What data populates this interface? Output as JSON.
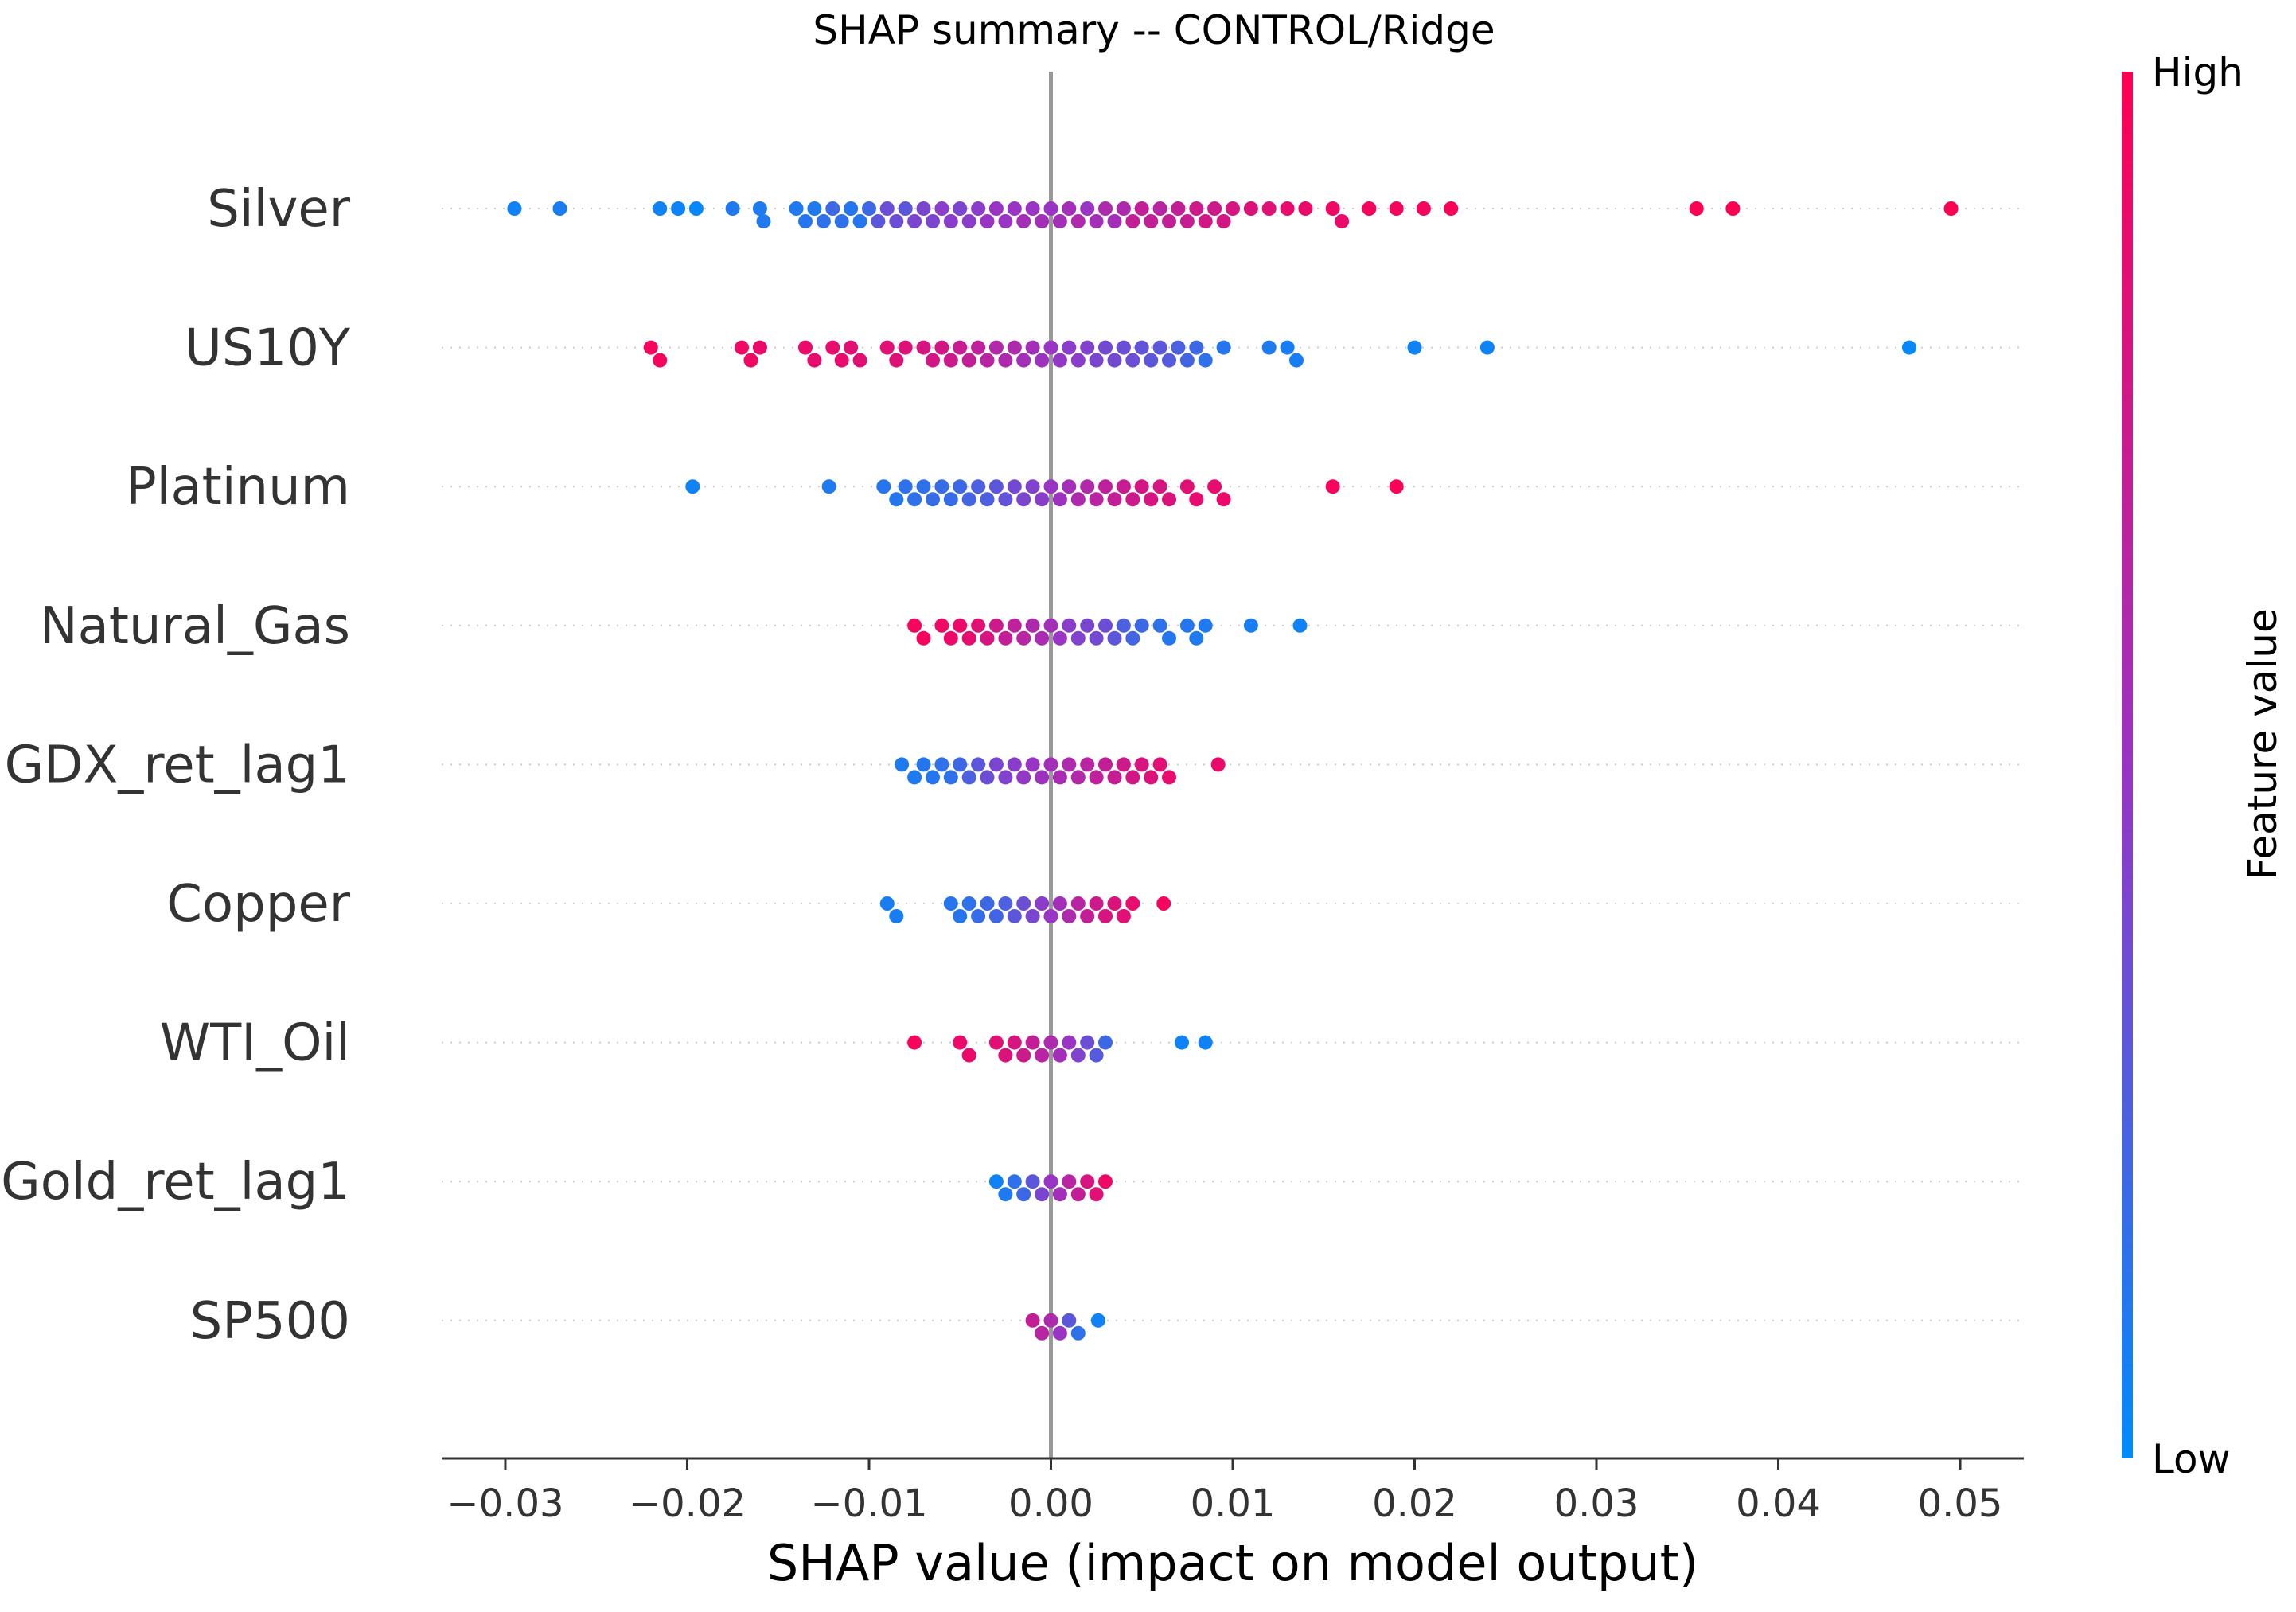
{
  "chart_data": {
    "type": "scatter",
    "subtype": "shap-beeswarm",
    "title": "SHAP summary -- CONTROL/Ridge",
    "xlabel": "SHAP value (impact on model output)",
    "xlim": [
      -0.0335,
      0.0535
    ],
    "xticks": [
      "−0.03",
      "−0.02",
      "−0.01",
      "0.00",
      "0.01",
      "0.02",
      "0.03",
      "0.04",
      "0.05"
    ],
    "xtick_values": [
      -0.03,
      -0.02,
      -0.01,
      0.0,
      0.01,
      0.02,
      0.03,
      0.04,
      0.05
    ],
    "grid": "dotted horizontal row guides",
    "zero_line": true,
    "colorbar": {
      "label": "Feature value",
      "high": "High",
      "low": "Low",
      "color_low": "#008bfb",
      "color_mid": "#9934c4",
      "color_high": "#ff0052"
    },
    "features": [
      {
        "name": "Silver",
        "points": [
          [
            -0.0295,
            0.05
          ],
          [
            -0.027,
            0.08
          ],
          [
            -0.0215,
            0.05
          ],
          [
            -0.0205,
            0.04
          ],
          [
            -0.0195,
            0.02
          ],
          [
            -0.0175,
            0.1
          ],
          [
            -0.016,
            0.1
          ],
          [
            -0.0158,
            0.1
          ],
          [
            -0.014,
            0.1
          ],
          [
            -0.0135,
            0.12
          ],
          [
            -0.013,
            0.1
          ],
          [
            -0.0125,
            0.15
          ],
          [
            -0.012,
            0.2
          ],
          [
            -0.0115,
            0.15
          ],
          [
            -0.011,
            0.12
          ],
          [
            -0.0105,
            0.12
          ],
          [
            -0.01,
            0.2
          ],
          [
            -0.0095,
            0.3
          ],
          [
            -0.009,
            0.35
          ],
          [
            -0.0085,
            0.35
          ],
          [
            -0.008,
            0.3
          ],
          [
            -0.0075,
            0.4
          ],
          [
            -0.007,
            0.4
          ],
          [
            -0.0065,
            0.4
          ],
          [
            -0.006,
            0.45
          ],
          [
            -0.0055,
            0.45
          ],
          [
            -0.005,
            0.4
          ],
          [
            -0.0045,
            0.45
          ],
          [
            -0.004,
            0.45
          ],
          [
            -0.0035,
            0.5
          ],
          [
            -0.003,
            0.5
          ],
          [
            -0.0025,
            0.5
          ],
          [
            -0.002,
            0.5
          ],
          [
            -0.0015,
            0.55
          ],
          [
            -0.001,
            0.5
          ],
          [
            -0.0005,
            0.55
          ],
          [
            0.0,
            0.5
          ],
          [
            0.0005,
            0.55
          ],
          [
            0.001,
            0.55
          ],
          [
            0.0015,
            0.6
          ],
          [
            0.002,
            0.5
          ],
          [
            0.0025,
            0.55
          ],
          [
            0.003,
            0.6
          ],
          [
            0.0035,
            0.55
          ],
          [
            0.004,
            0.6
          ],
          [
            0.0045,
            0.7
          ],
          [
            0.005,
            0.7
          ],
          [
            0.0055,
            0.7
          ],
          [
            0.006,
            0.65
          ],
          [
            0.0065,
            0.7
          ],
          [
            0.007,
            0.7
          ],
          [
            0.0075,
            0.72
          ],
          [
            0.008,
            0.75
          ],
          [
            0.0085,
            0.78
          ],
          [
            0.009,
            0.75
          ],
          [
            0.0095,
            0.78
          ],
          [
            0.01,
            0.8
          ],
          [
            0.011,
            0.82
          ],
          [
            0.012,
            0.85
          ],
          [
            0.013,
            0.88
          ],
          [
            0.014,
            0.9
          ],
          [
            0.0155,
            0.92
          ],
          [
            0.016,
            0.9
          ],
          [
            0.0175,
            0.95
          ],
          [
            0.019,
            0.95
          ],
          [
            0.0205,
            0.95
          ],
          [
            0.022,
            0.97
          ],
          [
            0.0355,
            1.0
          ],
          [
            0.0375,
            1.0
          ],
          [
            0.0495,
            1.0
          ]
        ]
      },
      {
        "name": "US10Y",
        "points": [
          [
            -0.022,
            0.95
          ],
          [
            -0.0215,
            0.95
          ],
          [
            -0.017,
            0.92
          ],
          [
            -0.0165,
            0.92
          ],
          [
            -0.016,
            0.9
          ],
          [
            -0.0135,
            0.9
          ],
          [
            -0.013,
            0.88
          ],
          [
            -0.012,
            0.88
          ],
          [
            -0.0115,
            0.88
          ],
          [
            -0.011,
            0.86
          ],
          [
            -0.0105,
            0.85
          ],
          [
            -0.009,
            0.85
          ],
          [
            -0.0085,
            0.84
          ],
          [
            -0.008,
            0.83
          ],
          [
            -0.007,
            0.8
          ],
          [
            -0.0065,
            0.78
          ],
          [
            -0.006,
            0.78
          ],
          [
            -0.0055,
            0.75
          ],
          [
            -0.005,
            0.72
          ],
          [
            -0.0045,
            0.7
          ],
          [
            -0.004,
            0.68
          ],
          [
            -0.0035,
            0.65
          ],
          [
            -0.003,
            0.62
          ],
          [
            -0.0025,
            0.6
          ],
          [
            -0.002,
            0.6
          ],
          [
            -0.0015,
            0.55
          ],
          [
            -0.001,
            0.55
          ],
          [
            -0.0005,
            0.52
          ],
          [
            0.0,
            0.5
          ],
          [
            0.0005,
            0.48
          ],
          [
            0.001,
            0.45
          ],
          [
            0.0015,
            0.45
          ],
          [
            0.002,
            0.42
          ],
          [
            0.0025,
            0.4
          ],
          [
            0.003,
            0.38
          ],
          [
            0.0035,
            0.38
          ],
          [
            0.004,
            0.35
          ],
          [
            0.0045,
            0.35
          ],
          [
            0.005,
            0.32
          ],
          [
            0.0055,
            0.3
          ],
          [
            0.006,
            0.3
          ],
          [
            0.0065,
            0.28
          ],
          [
            0.007,
            0.25
          ],
          [
            0.0075,
            0.22
          ],
          [
            0.008,
            0.2
          ],
          [
            0.0085,
            0.15
          ],
          [
            0.0095,
            0.12
          ],
          [
            0.012,
            0.1
          ],
          [
            0.013,
            0.08
          ],
          [
            0.0135,
            0.08
          ],
          [
            0.02,
            0.05
          ],
          [
            0.024,
            0.05
          ],
          [
            0.0472,
            0.02
          ]
        ]
      },
      {
        "name": "Platinum",
        "points": [
          [
            -0.0197,
            0.05
          ],
          [
            -0.0122,
            0.1
          ],
          [
            -0.0092,
            0.12
          ],
          [
            -0.0085,
            0.12
          ],
          [
            -0.008,
            0.15
          ],
          [
            -0.0075,
            0.15
          ],
          [
            -0.007,
            0.15
          ],
          [
            -0.0065,
            0.18
          ],
          [
            -0.006,
            0.18
          ],
          [
            -0.0055,
            0.18
          ],
          [
            -0.005,
            0.2
          ],
          [
            -0.0045,
            0.22
          ],
          [
            -0.004,
            0.25
          ],
          [
            -0.0035,
            0.25
          ],
          [
            -0.003,
            0.3
          ],
          [
            -0.0025,
            0.32
          ],
          [
            -0.002,
            0.38
          ],
          [
            -0.0015,
            0.4
          ],
          [
            -0.001,
            0.42
          ],
          [
            -0.0005,
            0.45
          ],
          [
            0.0,
            0.5
          ],
          [
            0.0005,
            0.52
          ],
          [
            0.001,
            0.55
          ],
          [
            0.0015,
            0.6
          ],
          [
            0.002,
            0.62
          ],
          [
            0.0025,
            0.65
          ],
          [
            0.003,
            0.68
          ],
          [
            0.0035,
            0.7
          ],
          [
            0.004,
            0.72
          ],
          [
            0.0045,
            0.75
          ],
          [
            0.005,
            0.78
          ],
          [
            0.0055,
            0.8
          ],
          [
            0.006,
            0.8
          ],
          [
            0.0065,
            0.82
          ],
          [
            0.0075,
            0.85
          ],
          [
            0.008,
            0.88
          ],
          [
            0.009,
            0.88
          ],
          [
            0.0095,
            0.9
          ],
          [
            0.0155,
            0.95
          ],
          [
            0.019,
            0.97
          ]
        ]
      },
      {
        "name": "Natural_Gas",
        "points": [
          [
            -0.0075,
            0.95
          ],
          [
            -0.007,
            0.95
          ],
          [
            -0.006,
            0.92
          ],
          [
            -0.0055,
            0.9
          ],
          [
            -0.005,
            0.9
          ],
          [
            -0.0045,
            0.88
          ],
          [
            -0.004,
            0.85
          ],
          [
            -0.0035,
            0.8
          ],
          [
            -0.003,
            0.75
          ],
          [
            -0.0025,
            0.7
          ],
          [
            -0.002,
            0.68
          ],
          [
            -0.0015,
            0.65
          ],
          [
            -0.001,
            0.6
          ],
          [
            -0.0005,
            0.58
          ],
          [
            0.0,
            0.55
          ],
          [
            0.0005,
            0.5
          ],
          [
            0.001,
            0.45
          ],
          [
            0.0015,
            0.42
          ],
          [
            0.002,
            0.4
          ],
          [
            0.0025,
            0.38
          ],
          [
            0.003,
            0.35
          ],
          [
            0.0035,
            0.3
          ],
          [
            0.004,
            0.25
          ],
          [
            0.0045,
            0.22
          ],
          [
            0.005,
            0.2
          ],
          [
            0.006,
            0.15
          ],
          [
            0.0065,
            0.12
          ],
          [
            0.0075,
            0.12
          ],
          [
            0.008,
            0.1
          ],
          [
            0.0085,
            0.1
          ],
          [
            0.011,
            0.08
          ],
          [
            0.0137,
            0.05
          ]
        ]
      },
      {
        "name": "GDX_ret_lag1",
        "points": [
          [
            -0.0082,
            0.1
          ],
          [
            -0.0075,
            0.1
          ],
          [
            -0.007,
            0.12
          ],
          [
            -0.0065,
            0.12
          ],
          [
            -0.006,
            0.15
          ],
          [
            -0.0055,
            0.15
          ],
          [
            -0.005,
            0.2
          ],
          [
            -0.0045,
            0.25
          ],
          [
            -0.004,
            0.3
          ],
          [
            -0.0035,
            0.35
          ],
          [
            -0.003,
            0.4
          ],
          [
            -0.0025,
            0.42
          ],
          [
            -0.002,
            0.45
          ],
          [
            -0.0015,
            0.48
          ],
          [
            -0.001,
            0.5
          ],
          [
            -0.0005,
            0.52
          ],
          [
            0.0,
            0.55
          ],
          [
            0.0005,
            0.58
          ],
          [
            0.001,
            0.6
          ],
          [
            0.0015,
            0.62
          ],
          [
            0.002,
            0.65
          ],
          [
            0.0025,
            0.68
          ],
          [
            0.003,
            0.7
          ],
          [
            0.0035,
            0.72
          ],
          [
            0.004,
            0.75
          ],
          [
            0.0045,
            0.78
          ],
          [
            0.005,
            0.8
          ],
          [
            0.0055,
            0.82
          ],
          [
            0.006,
            0.85
          ],
          [
            0.0065,
            0.88
          ],
          [
            0.0092,
            0.9
          ]
        ]
      },
      {
        "name": "Copper",
        "points": [
          [
            -0.009,
            0.08
          ],
          [
            -0.0085,
            0.08
          ],
          [
            -0.0055,
            0.12
          ],
          [
            -0.005,
            0.12
          ],
          [
            -0.0045,
            0.15
          ],
          [
            -0.004,
            0.18
          ],
          [
            -0.0035,
            0.2
          ],
          [
            -0.003,
            0.22
          ],
          [
            -0.0025,
            0.25
          ],
          [
            -0.002,
            0.3
          ],
          [
            -0.0015,
            0.35
          ],
          [
            -0.001,
            0.4
          ],
          [
            -0.0005,
            0.45
          ],
          [
            0.0,
            0.5
          ],
          [
            0.0005,
            0.55
          ],
          [
            0.001,
            0.6
          ],
          [
            0.0015,
            0.65
          ],
          [
            0.002,
            0.7
          ],
          [
            0.0025,
            0.75
          ],
          [
            0.003,
            0.8
          ],
          [
            0.0035,
            0.82
          ],
          [
            0.004,
            0.85
          ],
          [
            0.0045,
            0.88
          ],
          [
            0.0062,
            0.95
          ]
        ]
      },
      {
        "name": "WTI_Oil",
        "points": [
          [
            -0.0075,
            0.95
          ],
          [
            -0.005,
            0.9
          ],
          [
            -0.0045,
            0.9
          ],
          [
            -0.003,
            0.85
          ],
          [
            -0.0025,
            0.82
          ],
          [
            -0.002,
            0.8
          ],
          [
            -0.0015,
            0.75
          ],
          [
            -0.001,
            0.7
          ],
          [
            -0.0005,
            0.65
          ],
          [
            0.0,
            0.6
          ],
          [
            0.0005,
            0.55
          ],
          [
            0.001,
            0.5
          ],
          [
            0.0015,
            0.42
          ],
          [
            0.002,
            0.35
          ],
          [
            0.0025,
            0.28
          ],
          [
            0.003,
            0.2
          ],
          [
            0.0072,
            0.05
          ],
          [
            0.0085,
            0.05
          ]
        ]
      },
      {
        "name": "Gold_ret_lag1",
        "points": [
          [
            -0.003,
            0.05
          ],
          [
            -0.0025,
            0.1
          ],
          [
            -0.002,
            0.15
          ],
          [
            -0.0015,
            0.2
          ],
          [
            -0.001,
            0.3
          ],
          [
            -0.0005,
            0.4
          ],
          [
            0.0,
            0.5
          ],
          [
            0.0005,
            0.55
          ],
          [
            0.001,
            0.65
          ],
          [
            0.0015,
            0.7
          ],
          [
            0.002,
            0.8
          ],
          [
            0.0025,
            0.85
          ],
          [
            0.003,
            0.92
          ]
        ]
      },
      {
        "name": "SP500",
        "points": [
          [
            -0.001,
            0.7
          ],
          [
            -0.0005,
            0.65
          ],
          [
            0.0,
            0.6
          ],
          [
            0.0005,
            0.5
          ],
          [
            0.001,
            0.3
          ],
          [
            0.0015,
            0.15
          ],
          [
            0.0026,
            0.05
          ]
        ]
      }
    ]
  }
}
